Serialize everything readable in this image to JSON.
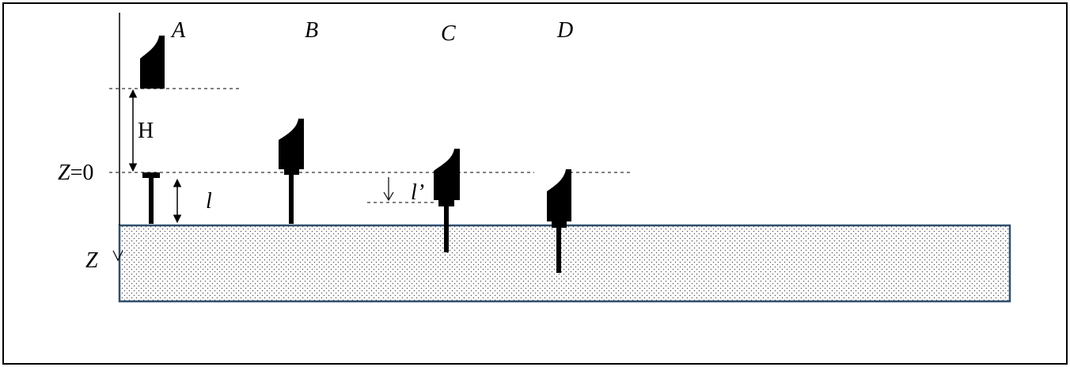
{
  "labels": {
    "stage_a": "A",
    "stage_b": "B",
    "stage_c": "C",
    "stage_d": "D",
    "drop_height": "H",
    "pin_length": "l",
    "penetration_offset": "l’",
    "z_zero_var": "Z",
    "z_zero_eq": "=0",
    "z_axis": "Z"
  },
  "colors": {
    "ink": "#000000",
    "ground_border": "#2f4f6f",
    "ground_dots": "#555555",
    "background": "#ffffff"
  }
}
